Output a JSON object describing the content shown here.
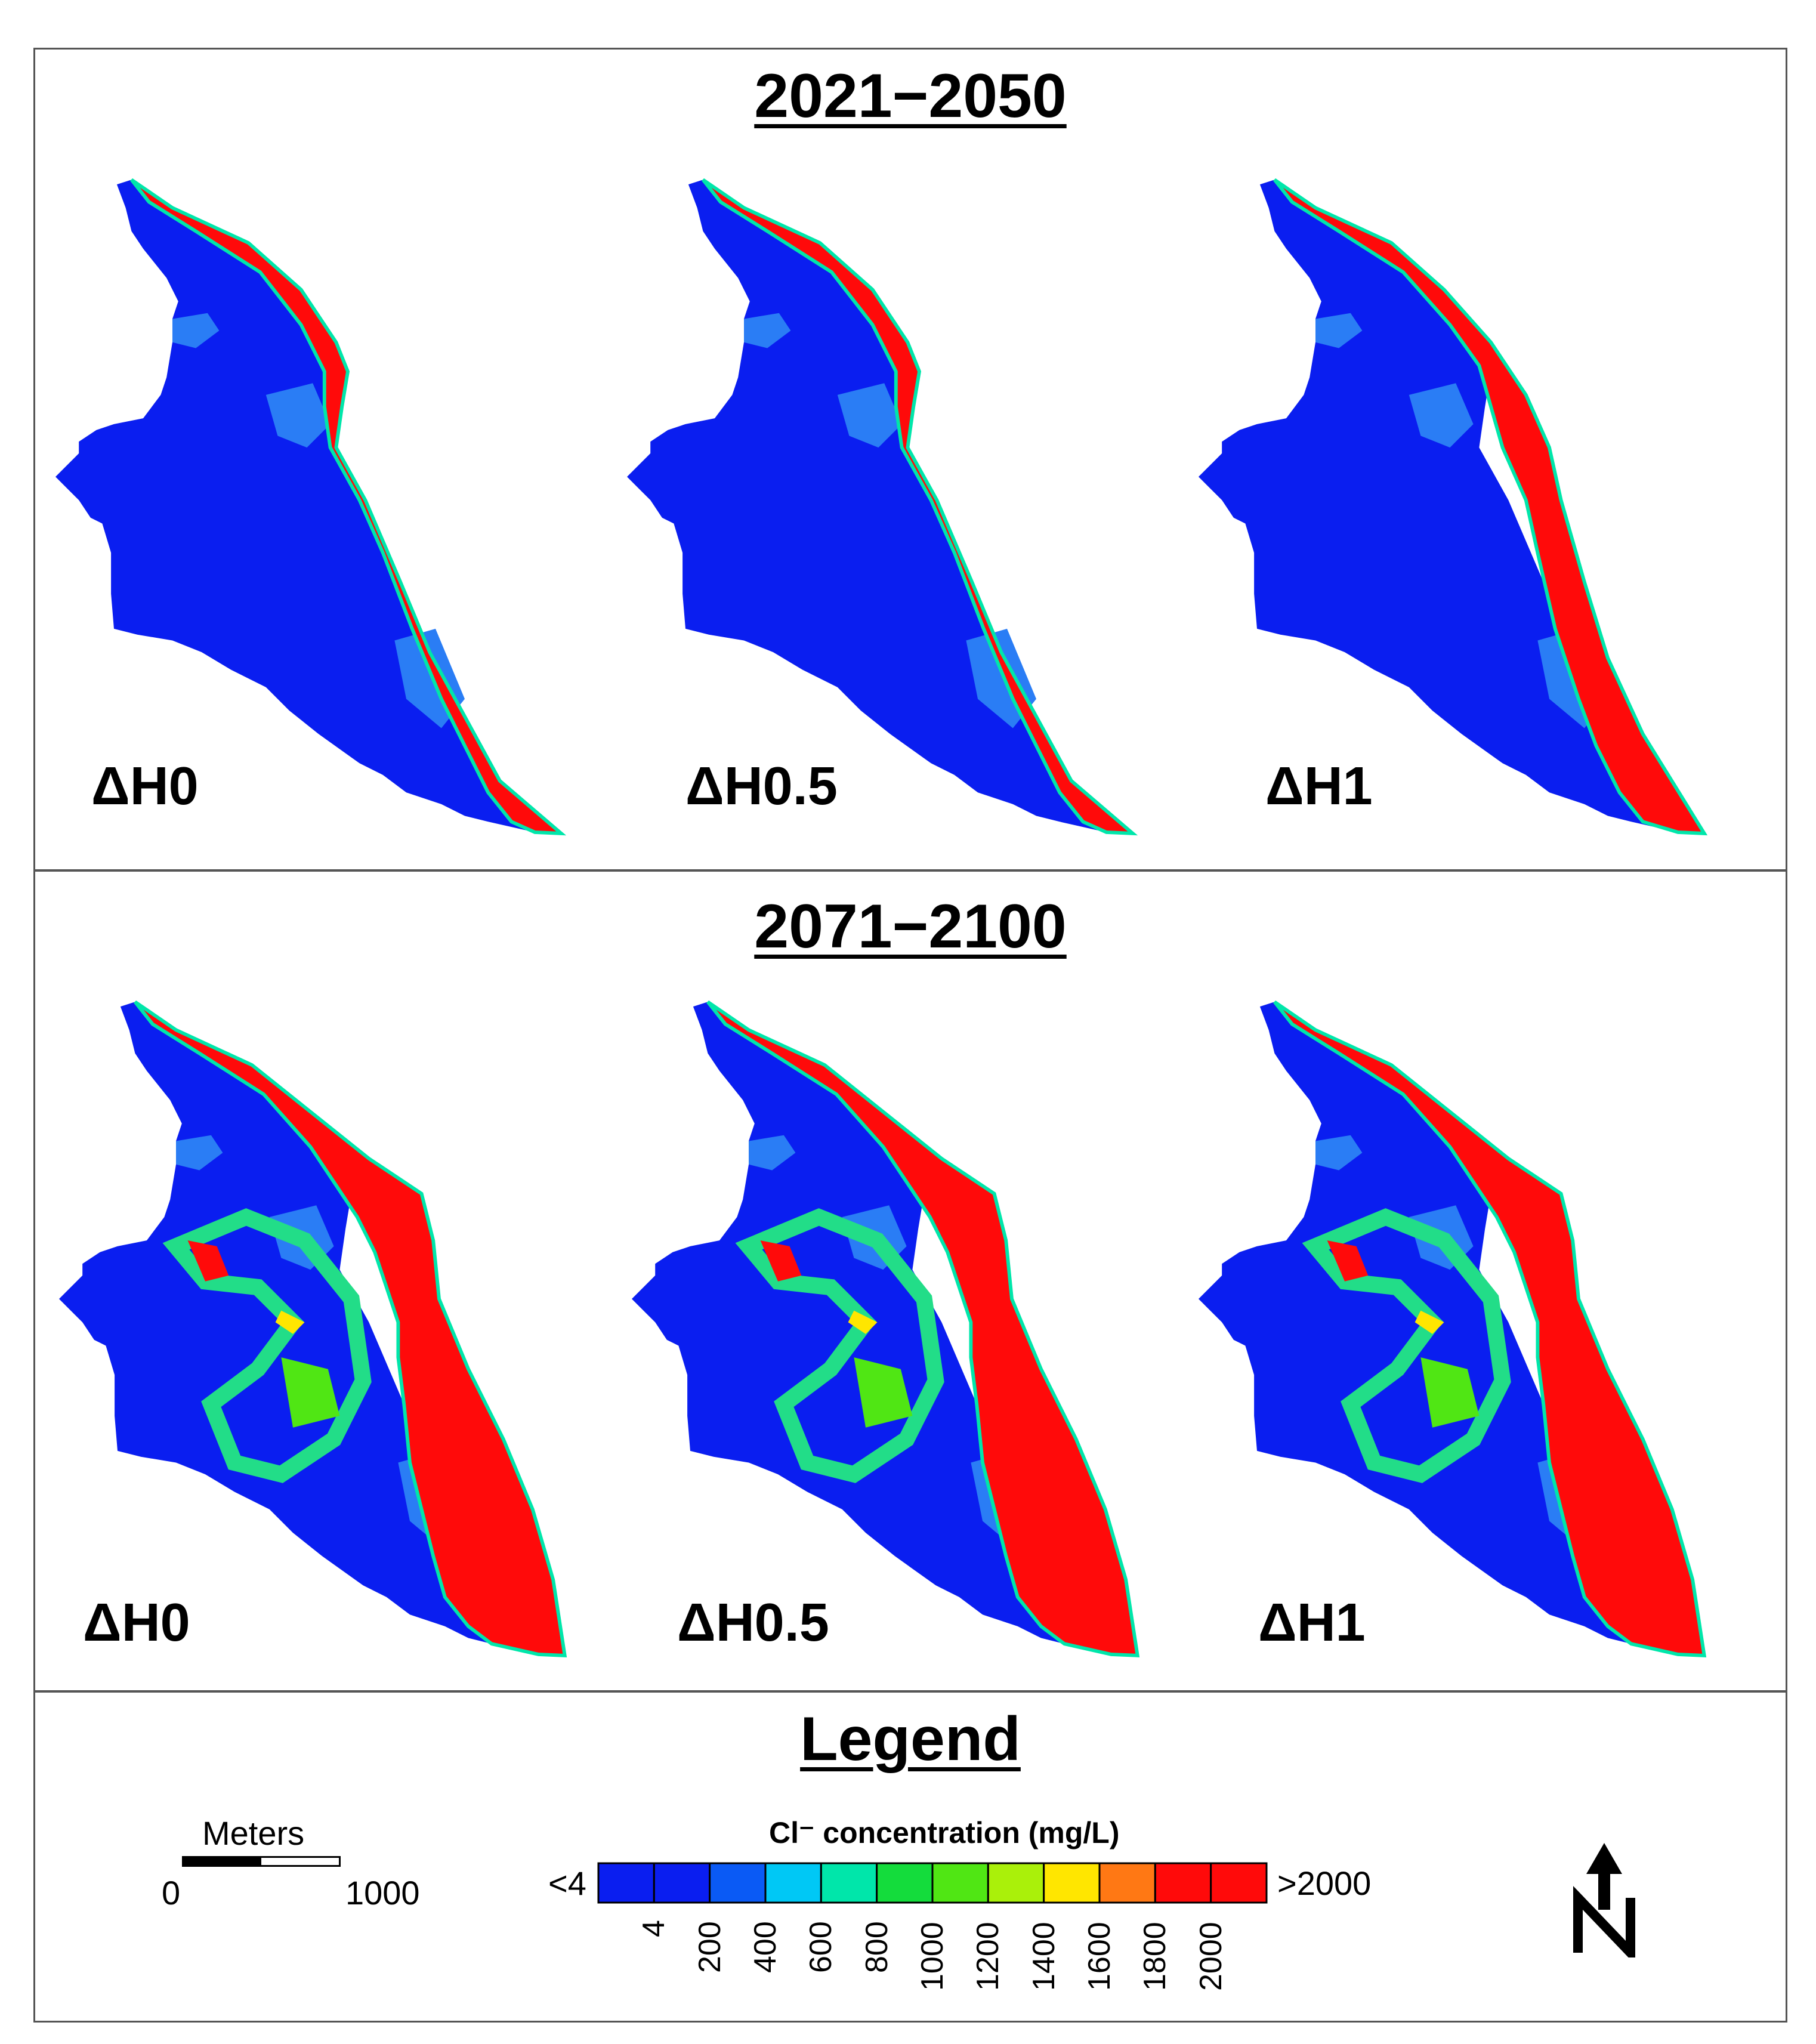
{
  "panels": [
    {
      "title": "2021−2050",
      "scenarios": [
        {
          "label": "ΔH0",
          "intrusion": "narrow"
        },
        {
          "label": "ΔH0.5",
          "intrusion": "narrow"
        },
        {
          "label": "ΔH1",
          "intrusion": "moderate"
        }
      ]
    },
    {
      "title": "2071−2100",
      "scenarios": [
        {
          "label": "ΔH0",
          "intrusion": "wide"
        },
        {
          "label": "ΔH0.5",
          "intrusion": "wide"
        },
        {
          "label": "ΔH1",
          "intrusion": "wide"
        }
      ]
    }
  ],
  "legend": {
    "title": "Legend",
    "scale": {
      "unit": "Meters",
      "start": "0",
      "end": "1000"
    },
    "colorbar": {
      "title": "Cl⁻ concentration (mg/L)",
      "low_label": "<4",
      "high_label": ">2000",
      "ticks": [
        "4",
        "200",
        "400",
        "600",
        "800",
        "1000",
        "1200",
        "1400",
        "1600",
        "1800",
        "2000"
      ],
      "colors": [
        "#0a1ef0",
        "#0a1ef0",
        "#0a5af5",
        "#00c8f5",
        "#00e6aa",
        "#14dc3c",
        "#50e614",
        "#aaf00a",
        "#ffe600",
        "#ff7814",
        "#ff0a0a",
        "#ff0a0a"
      ]
    },
    "north_arrow": "north-arrow-icon"
  },
  "colors": {
    "freshwater": "#0a1ef0",
    "mixing": "#2a7df5",
    "saline": "#ff0a0a"
  }
}
